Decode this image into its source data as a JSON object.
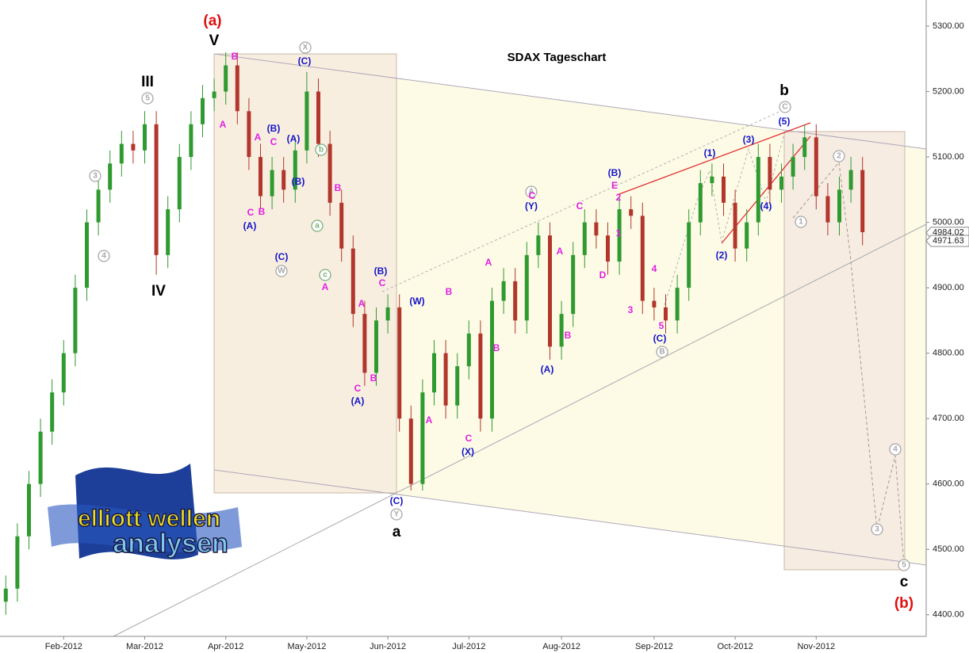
{
  "chart_data": {
    "type": "candlestick",
    "title": "SDAX Tageschart",
    "categories": [
      null,
      null,
      null,
      null,
      null,
      "Feb-2012",
      null,
      null,
      null,
      null,
      null,
      null,
      "Mar-2012",
      null,
      null,
      null,
      null,
      null,
      null,
      "Apr-2012",
      null,
      null,
      null,
      null,
      null,
      null,
      "May-2012",
      null,
      null,
      null,
      null,
      null,
      null,
      "Jun-2012",
      null,
      null,
      null,
      null,
      null,
      null,
      "Jul-2012",
      null,
      null,
      null,
      null,
      null,
      null,
      null,
      "Aug-2012",
      null,
      null,
      null,
      null,
      null,
      null,
      null,
      "Sep-2012",
      null,
      null,
      null,
      null,
      null,
      null,
      "Oct-2012",
      null,
      null,
      null,
      null,
      null,
      null,
      "Nov-2012",
      null,
      null,
      null,
      null,
      null,
      null,
      null,
      null,
      null
    ],
    "open": [
      4420,
      4440,
      4520,
      4600,
      4680,
      4740,
      4800,
      4900,
      5000,
      5050,
      5090,
      5120,
      5110,
      5150,
      4950,
      5020,
      5100,
      5150,
      5190,
      5200,
      5240,
      5170,
      5100,
      5040,
      5080,
      5050,
      5110,
      5200,
      5120,
      5030,
      4960,
      4860,
      4770,
      4850,
      4870,
      4700,
      4600,
      4740,
      4800,
      4720,
      4780,
      4830,
      4700,
      4880,
      4910,
      4850,
      4950,
      4980,
      4810,
      4860,
      4950,
      5000,
      4980,
      4940,
      5020,
      5010,
      4880,
      4870,
      4850,
      4900,
      5000,
      5060,
      5070,
      5030,
      4960,
      5000,
      5100,
      5050,
      5070,
      5100,
      5130,
      5040,
      5000,
      5050,
      5080,
      null,
      null,
      null,
      null,
      null
    ],
    "high": [
      4460,
      4540,
      4620,
      4700,
      4760,
      4820,
      4920,
      5020,
      5070,
      5110,
      5140,
      5140,
      5170,
      5170,
      5040,
      5120,
      5170,
      5210,
      5220,
      5260,
      5260,
      5190,
      5120,
      5100,
      5100,
      5130,
      5230,
      5220,
      5140,
      5050,
      4980,
      4880,
      4870,
      4890,
      4890,
      4720,
      4760,
      4820,
      4820,
      4800,
      4850,
      4850,
      4900,
      4930,
      4930,
      4970,
      5000,
      5000,
      4880,
      4970,
      5020,
      5020,
      5000,
      5040,
      5040,
      5030,
      4900,
      4890,
      4920,
      5020,
      5080,
      5090,
      5090,
      5050,
      5020,
      5120,
      5120,
      5090,
      5120,
      5150,
      5150,
      5060,
      5070,
      5100,
      5100,
      null,
      null,
      null,
      null,
      null
    ],
    "low": [
      4400,
      4420,
      4500,
      4580,
      4660,
      4720,
      4780,
      4880,
      4980,
      5030,
      5070,
      5090,
      5090,
      4920,
      4930,
      5000,
      5080,
      5130,
      5170,
      5180,
      5150,
      5080,
      5020,
      5020,
      5030,
      5030,
      5090,
      5100,
      5010,
      4940,
      4840,
      4750,
      4750,
      4830,
      4680,
      4590,
      4590,
      4720,
      4700,
      4700,
      4760,
      4680,
      4680,
      4860,
      4830,
      4830,
      4930,
      4790,
      4790,
      4840,
      4930,
      4960,
      4920,
      4920,
      4990,
      4860,
      4850,
      4830,
      4830,
      4880,
      4980,
      5040,
      5010,
      4940,
      4940,
      4980,
      5030,
      5030,
      5050,
      5080,
      5020,
      4980,
      4980,
      5030,
      4965,
      null,
      null,
      null,
      null,
      null
    ],
    "close": [
      4440,
      4520,
      4600,
      4680,
      4740,
      4800,
      4900,
      5000,
      5050,
      5090,
      5120,
      5110,
      5150,
      4950,
      5020,
      5100,
      5150,
      5190,
      5200,
      5240,
      5170,
      5100,
      5040,
      5080,
      5050,
      5110,
      5200,
      5120,
      5030,
      4960,
      4860,
      4770,
      4850,
      4870,
      4700,
      4600,
      4740,
      4800,
      4720,
      4780,
      4830,
      4700,
      4880,
      4910,
      4850,
      4950,
      4980,
      4810,
      4860,
      4950,
      5000,
      4980,
      4940,
      5020,
      5010,
      4880,
      4870,
      4850,
      4900,
      5000,
      5060,
      5070,
      5030,
      4960,
      5000,
      5100,
      5050,
      5070,
      5100,
      5130,
      5040,
      5000,
      5050,
      5080,
      4985,
      null,
      null,
      null,
      null,
      null
    ],
    "up_color": "#2f9a2f",
    "down_color": "#b2362c",
    "ylim": [
      4367,
      5340
    ],
    "yticks": [
      {
        "value": 4400,
        "label": "4400.00"
      },
      {
        "value": 4500,
        "label": "4500.00"
      },
      {
        "value": 4600,
        "label": "4600.00"
      },
      {
        "value": 4700,
        "label": "4700.00"
      },
      {
        "value": 4800,
        "label": "4800.00"
      },
      {
        "value": 4900,
        "label": "4900.00"
      },
      {
        "value": 5000,
        "label": "5000.00"
      },
      {
        "value": 5100,
        "label": "5100.00"
      },
      {
        "value": 5200,
        "label": "5200.00"
      },
      {
        "value": 5300,
        "label": "5300.00"
      }
    ],
    "price_tags": [
      4984.02,
      4971.63
    ],
    "logo": {
      "line1": "elliott wellen",
      "line2": "analysen"
    },
    "annotations": [
      {
        "text": "(a)",
        "color": "#e01010"
      },
      {
        "text": "V",
        "color": "#000000"
      },
      {
        "text": "III",
        "color": "#000000"
      },
      {
        "text": "IV",
        "color": "#000000"
      },
      {
        "text": "b",
        "color": "#000000"
      },
      {
        "text": "a",
        "color": "#000000"
      },
      {
        "text": "c",
        "color": "#000000"
      },
      {
        "text": "(b)",
        "color": "#e01010"
      },
      {
        "text": "5",
        "color": "#a8a8a8"
      },
      {
        "text": "3",
        "color": "#a8a8a8"
      },
      {
        "text": "4",
        "color": "#a8a8a8"
      },
      {
        "text": "X",
        "color": "#a8a8a8"
      },
      {
        "text": "W",
        "color": "#a8a8a8"
      },
      {
        "text": "Y",
        "color": "#a8a8a8"
      },
      {
        "text": "A",
        "color": "#a8a8a8"
      },
      {
        "text": "B",
        "color": "#a8a8a8"
      },
      {
        "text": "C",
        "color": "#a8a8a8"
      },
      {
        "text": "1",
        "color": "#a8a8a8"
      },
      {
        "text": "2",
        "color": "#a8a8a8"
      },
      {
        "text": "3",
        "color": "#a8a8a8"
      },
      {
        "text": "4",
        "color": "#a8a8a8"
      },
      {
        "text": "5",
        "color": "#a8a8a8"
      },
      {
        "text": "b",
        "color": "#7cb07c"
      },
      {
        "text": "a",
        "color": "#7cb07c"
      },
      {
        "text": "c",
        "color": "#7cb07c"
      },
      {
        "text": "(C)",
        "color": "#1414c8"
      },
      {
        "text": "(B)",
        "color": "#1414c8"
      },
      {
        "text": "(A)",
        "color": "#1414c8"
      },
      {
        "text": "(B)",
        "color": "#1414c8"
      },
      {
        "text": "(A)",
        "color": "#1414c8"
      },
      {
        "text": "(C)",
        "color": "#1414c8"
      },
      {
        "text": "(B)",
        "color": "#1414c8"
      },
      {
        "text": "(W)",
        "color": "#1414c8"
      },
      {
        "text": "(A)",
        "color": "#1414c8"
      },
      {
        "text": "(C)",
        "color": "#1414c8"
      },
      {
        "text": "(X)",
        "color": "#1414c8"
      },
      {
        "text": "(Y)",
        "color": "#1414c8"
      },
      {
        "text": "(A)",
        "color": "#1414c8"
      },
      {
        "text": "(B)",
        "color": "#1414c8"
      },
      {
        "text": "(C)",
        "color": "#1414c8"
      },
      {
        "text": "(1)",
        "color": "#1414c8"
      },
      {
        "text": "(2)",
        "color": "#1414c8"
      },
      {
        "text": "(3)",
        "color": "#1414c8"
      },
      {
        "text": "(4)",
        "color": "#1414c8"
      },
      {
        "text": "(5)",
        "color": "#1414c8"
      },
      {
        "text": "B",
        "color": "#e020e0"
      },
      {
        "text": "A",
        "color": "#e020e0"
      },
      {
        "text": "A",
        "color": "#e020e0"
      },
      {
        "text": "C",
        "color": "#e020e0"
      },
      {
        "text": "C",
        "color": "#e020e0"
      },
      {
        "text": "B",
        "color": "#e020e0"
      },
      {
        "text": "B",
        "color": "#e020e0"
      },
      {
        "text": "A",
        "color": "#e020e0"
      },
      {
        "text": "A",
        "color": "#e020e0"
      },
      {
        "text": "C",
        "color": "#e020e0"
      },
      {
        "text": "B",
        "color": "#e020e0"
      },
      {
        "text": "C",
        "color": "#e020e0"
      },
      {
        "text": "B",
        "color": "#e020e0"
      },
      {
        "text": "A",
        "color": "#e020e0"
      },
      {
        "text": "C",
        "color": "#e020e0"
      },
      {
        "text": "A",
        "color": "#e020e0"
      },
      {
        "text": "B",
        "color": "#e020e0"
      },
      {
        "text": "C",
        "color": "#e020e0"
      },
      {
        "text": "A",
        "color": "#e020e0"
      },
      {
        "text": "B",
        "color": "#e020e0"
      },
      {
        "text": "C",
        "color": "#e020e0"
      },
      {
        "text": "D",
        "color": "#e020e0"
      },
      {
        "text": "E",
        "color": "#e020e0"
      },
      {
        "text": "2",
        "color": "#e020e0"
      },
      {
        "text": "1",
        "color": "#e020e0"
      },
      {
        "text": "3",
        "color": "#e020e0"
      },
      {
        "text": "4",
        "color": "#e020e0"
      },
      {
        "text": "5",
        "color": "#e020e0"
      }
    ]
  }
}
